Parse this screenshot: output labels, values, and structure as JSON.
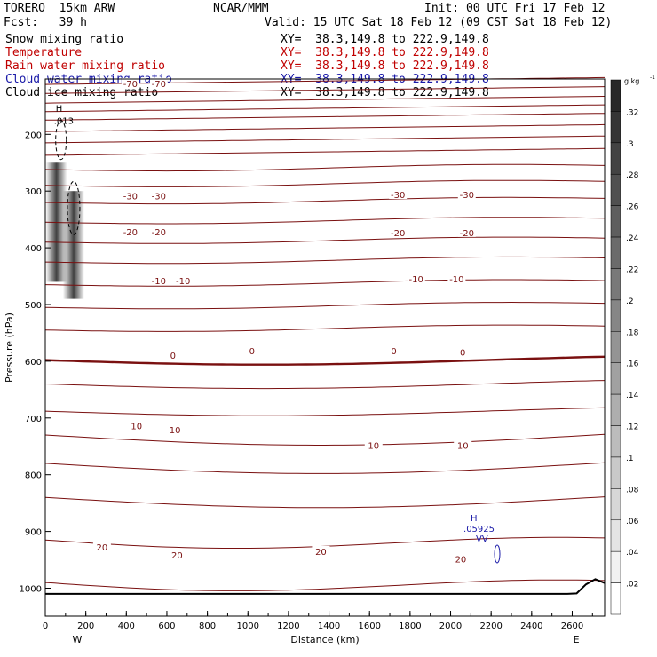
{
  "header": {
    "model": "TORERO  15km ARW",
    "org": "NCAR/MMM",
    "init": "Init: 00 UTC Fri 17 Feb 12",
    "fcst": "Fcst:   39 h",
    "valid": "Valid: 15 UTC Sat 18 Feb 12 (09 CST Sat 18 Feb 12)",
    "fields": [
      {
        "label": "Snow mixing ratio",
        "color": "#000000",
        "xy": "XY=  38.3,149.8 to 222.9,149.8"
      },
      {
        "label": "Temperature",
        "color": "#c00000",
        "xy": "XY=  38.3,149.8 to 222.9,149.8"
      },
      {
        "label": "Rain water mixing ratio",
        "color": "#c00000",
        "xy": "XY=  38.3,149.8 to 222.9,149.8"
      },
      {
        "label": "Cloud water mixing ratio",
        "color": "#1a1aa8",
        "xy": "XY=  38.3,149.8 to 222.9,149.8"
      },
      {
        "label": "Cloud ice mixing ratio",
        "color": "#000000",
        "xy": "XY=  38.3,149.8 to 222.9,149.8"
      }
    ]
  },
  "chart_data": {
    "type": "contour",
    "xlabel": "Distance (km)",
    "ylabel": "Pressure (hPa)",
    "xlim": [
      0,
      2760
    ],
    "ylim": [
      1050,
      100
    ],
    "x_ticks": [
      0,
      200,
      400,
      600,
      800,
      1000,
      1200,
      1400,
      1600,
      1800,
      2000,
      2200,
      2400,
      2600
    ],
    "y_ticks": [
      200,
      300,
      400,
      500,
      600,
      700,
      800,
      900,
      1000
    ],
    "x_end_labels": {
      "left": "W",
      "right": "E"
    },
    "temperature_contour_labels": [
      {
        "value": "-70",
        "x": 420,
        "p": 110
      },
      {
        "value": "-70",
        "x": 560,
        "p": 110
      },
      {
        "value": "-30",
        "x": 420,
        "p": 308
      },
      {
        "value": "-30",
        "x": 560,
        "p": 308
      },
      {
        "value": "-30",
        "x": 1740,
        "p": 306
      },
      {
        "value": "-30",
        "x": 2080,
        "p": 306
      },
      {
        "value": "-20",
        "x": 420,
        "p": 372
      },
      {
        "value": "-20",
        "x": 560,
        "p": 372
      },
      {
        "value": "-20",
        "x": 1740,
        "p": 373
      },
      {
        "value": "-20",
        "x": 2080,
        "p": 373
      },
      {
        "value": "-10",
        "x": 560,
        "p": 458
      },
      {
        "value": "-10",
        "x": 680,
        "p": 458
      },
      {
        "value": "-10",
        "x": 1830,
        "p": 455
      },
      {
        "value": "-10",
        "x": 2030,
        "p": 455
      },
      {
        "value": "0",
        "x": 630,
        "p": 589
      },
      {
        "value": "0",
        "x": 1020,
        "p": 581
      },
      {
        "value": "0",
        "x": 1720,
        "p": 581
      },
      {
        "value": "0",
        "x": 2060,
        "p": 584
      },
      {
        "value": "10",
        "x": 450,
        "p": 714
      },
      {
        "value": "10",
        "x": 640,
        "p": 721
      },
      {
        "value": "10",
        "x": 1620,
        "p": 748
      },
      {
        "value": "10",
        "x": 2060,
        "p": 748
      },
      {
        "value": "20",
        "x": 280,
        "p": 927
      },
      {
        "value": "20",
        "x": 650,
        "p": 941
      },
      {
        "value": "20",
        "x": 1360,
        "p": 935
      },
      {
        "value": "20",
        "x": 2050,
        "p": 948
      }
    ],
    "isotherm_pressures_at_left": [
      112,
      128,
      145,
      160,
      175,
      195,
      215,
      237,
      262,
      290,
      320,
      355,
      390,
      425,
      465,
      505,
      545,
      598,
      640,
      688,
      730,
      780,
      840,
      915,
      990
    ],
    "zero_isotherm_index": 17,
    "snow_maxima": [
      {
        "x": 55,
        "p_top": 250,
        "p_bottom": 460
      },
      {
        "x": 140,
        "p_top": 300,
        "p_bottom": 490
      }
    ],
    "cloud_ice_marker": {
      "label_h": "H",
      "label_value": ".013",
      "x": 60,
      "p": 175
    },
    "cloud_water_marker": {
      "label_h": "H",
      "label_value": ".05925",
      "label_vv": "VV",
      "x": 2230,
      "p": 935
    },
    "colorbar": {
      "unit": "g kg",
      "unit_exp": "-1",
      "ticks": [
        ".32",
        ".3",
        ".28",
        ".26",
        ".24",
        ".22",
        ".2",
        ".18",
        ".16",
        ".14",
        ".12",
        ".1",
        ".08",
        ".06",
        ".04",
        ".02"
      ]
    },
    "terrain_pressure": 1010
  }
}
